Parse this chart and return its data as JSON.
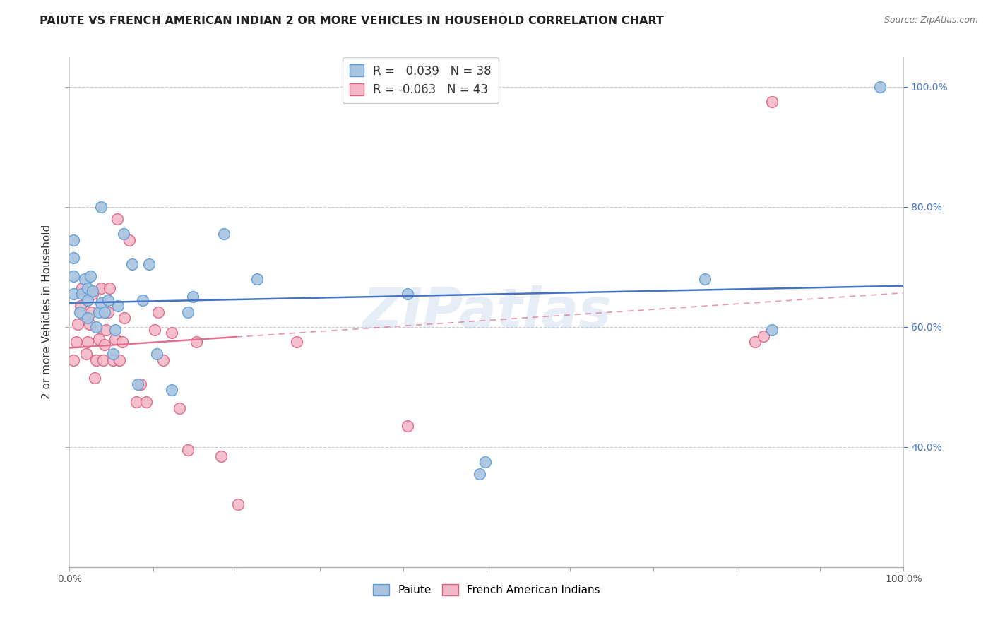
{
  "title": "PAIUTE VS FRENCH AMERICAN INDIAN 2 OR MORE VEHICLES IN HOUSEHOLD CORRELATION CHART",
  "source": "Source: ZipAtlas.com",
  "ylabel": "2 or more Vehicles in Household",
  "xlim": [
    0.0,
    1.0
  ],
  "ylim": [
    0.2,
    1.05
  ],
  "xtick_values": [
    0.0,
    0.1,
    0.2,
    0.3,
    0.4,
    0.5,
    0.6,
    0.7,
    0.8,
    0.9,
    1.0
  ],
  "xtick_edge_labels": [
    "0.0%",
    "100.0%"
  ],
  "ytick_values": [
    0.4,
    0.6,
    0.8,
    1.0
  ],
  "right_ytick_labels": [
    "40.0%",
    "60.0%",
    "80.0%",
    "100.0%"
  ],
  "paiute_color": "#a8c4e0",
  "paiute_edge_color": "#5b9bd5",
  "french_color": "#f4b8c8",
  "french_edge_color": "#e06080",
  "trendline_paiute_color": "#4472c4",
  "trendline_french_solid_color": "#e07090",
  "trendline_french_dash_color": "#e07090",
  "R_paiute": 0.039,
  "N_paiute": 38,
  "R_french": -0.063,
  "N_french": 43,
  "watermark": "ZIPatlas",
  "legend_R_color": "#4472c4",
  "legend_R2_color": "#e06080",
  "legend_N_color": "#e06030",
  "paiute_x": [
    0.005,
    0.005,
    0.005,
    0.005,
    0.012,
    0.015,
    0.018,
    0.022,
    0.022,
    0.022,
    0.025,
    0.028,
    0.032,
    0.035,
    0.038,
    0.038,
    0.042,
    0.046,
    0.052,
    0.055,
    0.058,
    0.065,
    0.075,
    0.082,
    0.088,
    0.095,
    0.105,
    0.122,
    0.142,
    0.148,
    0.185,
    0.225,
    0.405,
    0.492,
    0.498,
    0.762,
    0.842,
    0.972
  ],
  "paiute_y": [
    0.655,
    0.685,
    0.715,
    0.745,
    0.625,
    0.655,
    0.68,
    0.615,
    0.645,
    0.665,
    0.685,
    0.66,
    0.6,
    0.625,
    0.64,
    0.8,
    0.625,
    0.645,
    0.555,
    0.595,
    0.635,
    0.755,
    0.705,
    0.505,
    0.645,
    0.705,
    0.555,
    0.495,
    0.625,
    0.65,
    0.755,
    0.68,
    0.655,
    0.355,
    0.375,
    0.68,
    0.595,
    1.0
  ],
  "french_x": [
    0.005,
    0.008,
    0.01,
    0.013,
    0.015,
    0.02,
    0.022,
    0.024,
    0.026,
    0.028,
    0.03,
    0.032,
    0.035,
    0.038,
    0.04,
    0.042,
    0.044,
    0.046,
    0.048,
    0.052,
    0.055,
    0.057,
    0.06,
    0.063,
    0.066,
    0.072,
    0.08,
    0.085,
    0.092,
    0.102,
    0.106,
    0.112,
    0.122,
    0.132,
    0.142,
    0.152,
    0.182,
    0.202,
    0.272,
    0.405,
    0.822,
    0.832,
    0.842
  ],
  "french_y": [
    0.545,
    0.575,
    0.605,
    0.635,
    0.665,
    0.555,
    0.575,
    0.605,
    0.625,
    0.655,
    0.515,
    0.545,
    0.58,
    0.665,
    0.545,
    0.57,
    0.595,
    0.625,
    0.665,
    0.545,
    0.58,
    0.78,
    0.545,
    0.575,
    0.615,
    0.745,
    0.475,
    0.505,
    0.475,
    0.595,
    0.625,
    0.545,
    0.59,
    0.465,
    0.395,
    0.575,
    0.385,
    0.305,
    0.575,
    0.435,
    0.575,
    0.585,
    0.975
  ]
}
